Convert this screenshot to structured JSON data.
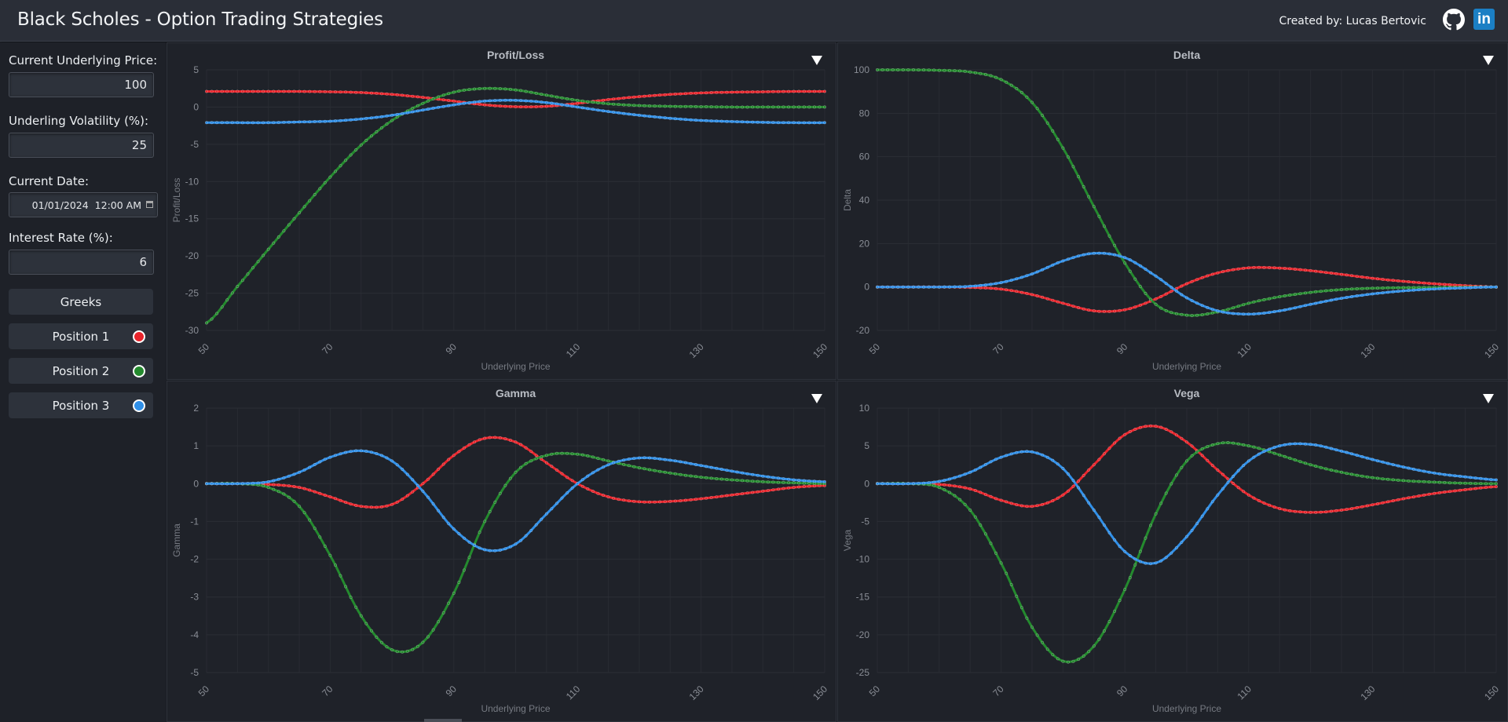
{
  "header": {
    "title": "Black Scholes - Option Trading Strategies",
    "credit": "Created by: Lucas Bertovic",
    "github_icon": "github-icon",
    "linkedin_icon": "linkedin-icon",
    "linkedin_text": "in"
  },
  "sidebar": {
    "underlying_label": "Current Underlying Price:",
    "underlying_value": "100",
    "vol_label": "Underling Volatility (%):",
    "vol_value": "25",
    "date_label": "Current Date:",
    "date_value": "01/01/2024  12:00 AM",
    "rate_label": "Interest Rate (%):",
    "rate_value": "6",
    "greeks_button": "Greeks",
    "positions": [
      {
        "label": "Position 1",
        "color": "#e8242b"
      },
      {
        "label": "Position 2",
        "color": "#248a2e"
      },
      {
        "label": "Position 3",
        "color": "#2f8fe8"
      }
    ]
  },
  "chart_data": [
    {
      "type": "line",
      "title": "Profit/Loss",
      "xlabel": "Underlying Price",
      "ylabel": "Profit/Loss",
      "xlim": [
        50,
        150
      ],
      "ylim": [
        -30,
        5
      ],
      "xticks": [
        "50",
        "70",
        "90",
        "110",
        "130",
        "150"
      ],
      "yticks": [
        "5",
        "0",
        "-5",
        "-10",
        "-15",
        "-20",
        "-25",
        "-30"
      ],
      "series": [
        {
          "color": "#e8242b",
          "x": [
            50,
            55,
            60,
            65,
            70,
            75,
            80,
            85,
            90,
            95,
            100,
            105,
            110,
            115,
            120,
            125,
            130,
            135,
            140,
            145,
            150
          ],
          "y": [
            2.1,
            2.1,
            2.1,
            2.1,
            2.05,
            1.95,
            1.7,
            1.3,
            0.8,
            0.3,
            0.05,
            0.1,
            0.5,
            1.0,
            1.4,
            1.7,
            1.9,
            2.0,
            2.05,
            2.1,
            2.1
          ]
        },
        {
          "color": "#248a2e",
          "x": [
            50,
            55,
            60,
            65,
            70,
            75,
            80,
            85,
            90,
            95,
            100,
            105,
            110,
            115,
            120,
            125,
            130,
            135,
            140,
            145,
            150
          ],
          "y": [
            -29,
            -24.1,
            -19.1,
            -14.2,
            -9.4,
            -5.1,
            -1.8,
            0.5,
            2.0,
            2.5,
            2.3,
            1.6,
            0.9,
            0.45,
            0.2,
            0.1,
            0.05,
            0.0,
            0.0,
            0.0,
            0.0
          ]
        },
        {
          "color": "#2f8fe8",
          "x": [
            50,
            55,
            60,
            65,
            70,
            75,
            80,
            85,
            90,
            95,
            100,
            105,
            110,
            115,
            120,
            125,
            130,
            135,
            140,
            145,
            150
          ],
          "y": [
            -2.1,
            -2.1,
            -2.1,
            -2.0,
            -1.9,
            -1.6,
            -1.1,
            -0.4,
            0.3,
            0.8,
            0.9,
            0.6,
            0.0,
            -0.6,
            -1.1,
            -1.5,
            -1.8,
            -1.95,
            -2.05,
            -2.1,
            -2.1
          ]
        }
      ]
    },
    {
      "type": "line",
      "title": "Delta",
      "xlabel": "Underlying Price",
      "ylabel": "Delta",
      "xlim": [
        50,
        150
      ],
      "ylim": [
        -20,
        100
      ],
      "xticks": [
        "50",
        "70",
        "90",
        "110",
        "130",
        "150"
      ],
      "yticks": [
        "100",
        "80",
        "60",
        "40",
        "20",
        "0",
        "-20"
      ],
      "series": [
        {
          "color": "#e8242b",
          "x": [
            50,
            55,
            60,
            65,
            70,
            75,
            80,
            85,
            90,
            95,
            100,
            105,
            110,
            115,
            120,
            125,
            130,
            135,
            140,
            145,
            150
          ],
          "y": [
            0,
            0,
            0,
            -0.2,
            -1,
            -3.5,
            -7.5,
            -11,
            -10.5,
            -5.5,
            1.5,
            6.5,
            8.8,
            8.7,
            7.5,
            5.8,
            4.0,
            2.6,
            1.5,
            0.6,
            0
          ]
        },
        {
          "color": "#248a2e",
          "x": [
            50,
            55,
            60,
            65,
            70,
            75,
            80,
            85,
            90,
            95,
            100,
            105,
            110,
            115,
            120,
            125,
            130,
            135,
            140,
            145,
            150
          ],
          "y": [
            100,
            100,
            99.8,
            99,
            95.5,
            85,
            64,
            37,
            11,
            -8,
            -13,
            -11.5,
            -7.5,
            -4.5,
            -2.5,
            -1.2,
            -0.6,
            -0.3,
            -0.2,
            -0.1,
            0
          ]
        },
        {
          "color": "#2f8fe8",
          "x": [
            50,
            55,
            60,
            65,
            70,
            75,
            80,
            85,
            90,
            95,
            100,
            105,
            110,
            115,
            120,
            125,
            130,
            135,
            140,
            145,
            150
          ],
          "y": [
            0,
            0,
            0,
            0.3,
            2,
            6,
            12,
            15.5,
            13.5,
            5,
            -5,
            -11,
            -12.5,
            -11,
            -8,
            -5.2,
            -3.2,
            -1.8,
            -0.9,
            -0.4,
            0
          ]
        }
      ]
    },
    {
      "type": "line",
      "title": "Gamma",
      "xlabel": "Underlying Price",
      "ylabel": "Gamma",
      "xlim": [
        50,
        150
      ],
      "ylim": [
        -5,
        2
      ],
      "xticks": [
        "50",
        "70",
        "90",
        "110",
        "130",
        "150"
      ],
      "yticks": [
        "2",
        "1",
        "0",
        "-1",
        "-2",
        "-3",
        "-4",
        "-5"
      ],
      "series": [
        {
          "color": "#e8242b",
          "x": [
            50,
            55,
            60,
            65,
            70,
            75,
            80,
            85,
            90,
            95,
            100,
            105,
            110,
            115,
            120,
            125,
            130,
            135,
            140,
            145,
            150
          ],
          "y": [
            0,
            0,
            -0.02,
            -0.1,
            -0.35,
            -0.6,
            -0.55,
            0.0,
            0.75,
            1.2,
            1.1,
            0.55,
            0.0,
            -0.35,
            -0.48,
            -0.47,
            -0.4,
            -0.3,
            -0.2,
            -0.1,
            -0.05
          ]
        },
        {
          "color": "#248a2e",
          "x": [
            50,
            55,
            60,
            65,
            70,
            75,
            80,
            85,
            90,
            95,
            100,
            105,
            110,
            115,
            120,
            125,
            130,
            135,
            140,
            145,
            150
          ],
          "y": [
            0,
            0,
            -0.1,
            -0.6,
            -1.9,
            -3.5,
            -4.4,
            -4.2,
            -2.9,
            -1.0,
            0.3,
            0.75,
            0.78,
            0.6,
            0.42,
            0.28,
            0.17,
            0.1,
            0.05,
            0.02,
            0
          ]
        },
        {
          "color": "#2f8fe8",
          "x": [
            50,
            55,
            60,
            65,
            70,
            75,
            80,
            85,
            90,
            95,
            100,
            105,
            110,
            115,
            120,
            125,
            130,
            135,
            140,
            145,
            150
          ],
          "y": [
            0,
            0,
            0.05,
            0.3,
            0.7,
            0.87,
            0.6,
            -0.2,
            -1.2,
            -1.75,
            -1.6,
            -0.8,
            0.0,
            0.5,
            0.68,
            0.62,
            0.48,
            0.33,
            0.2,
            0.1,
            0.05
          ]
        }
      ]
    },
    {
      "type": "line",
      "title": "Vega",
      "xlabel": "Underlying Price",
      "ylabel": "Vega",
      "xlim": [
        50,
        150
      ],
      "ylim": [
        -25,
        10
      ],
      "xticks": [
        "50",
        "70",
        "90",
        "110",
        "130",
        "150"
      ],
      "yticks": [
        "10",
        "5",
        "0",
        "-5",
        "-10",
        "-15",
        "-20",
        "-25"
      ],
      "series": [
        {
          "color": "#e8242b",
          "x": [
            50,
            55,
            60,
            65,
            70,
            75,
            80,
            85,
            90,
            95,
            100,
            105,
            110,
            115,
            120,
            125,
            130,
            135,
            140,
            145,
            150
          ],
          "y": [
            0,
            0,
            -0.1,
            -0.7,
            -2.2,
            -3.0,
            -1.5,
            2.5,
            6.5,
            7.6,
            5.5,
            1.8,
            -1.5,
            -3.3,
            -3.8,
            -3.5,
            -2.8,
            -2.0,
            -1.3,
            -0.8,
            -0.4
          ]
        },
        {
          "color": "#248a2e",
          "x": [
            50,
            55,
            60,
            65,
            70,
            75,
            80,
            85,
            90,
            95,
            100,
            105,
            110,
            115,
            120,
            125,
            130,
            135,
            140,
            145,
            150
          ],
          "y": [
            0,
            0,
            -0.5,
            -3.5,
            -10.5,
            -19,
            -23.5,
            -21.5,
            -14,
            -4,
            3,
            5.3,
            5.0,
            3.8,
            2.5,
            1.5,
            0.8,
            0.4,
            0.2,
            0.05,
            0
          ]
        },
        {
          "color": "#2f8fe8",
          "x": [
            50,
            55,
            60,
            65,
            70,
            75,
            80,
            85,
            90,
            95,
            100,
            105,
            110,
            115,
            120,
            125,
            130,
            135,
            140,
            145,
            150
          ],
          "y": [
            0,
            0,
            0.3,
            1.5,
            3.5,
            4.2,
            2.0,
            -3.5,
            -9,
            -10.5,
            -7,
            -1.5,
            3.0,
            5.0,
            5.2,
            4.3,
            3.2,
            2.2,
            1.4,
            0.9,
            0.5
          ]
        }
      ]
    }
  ]
}
